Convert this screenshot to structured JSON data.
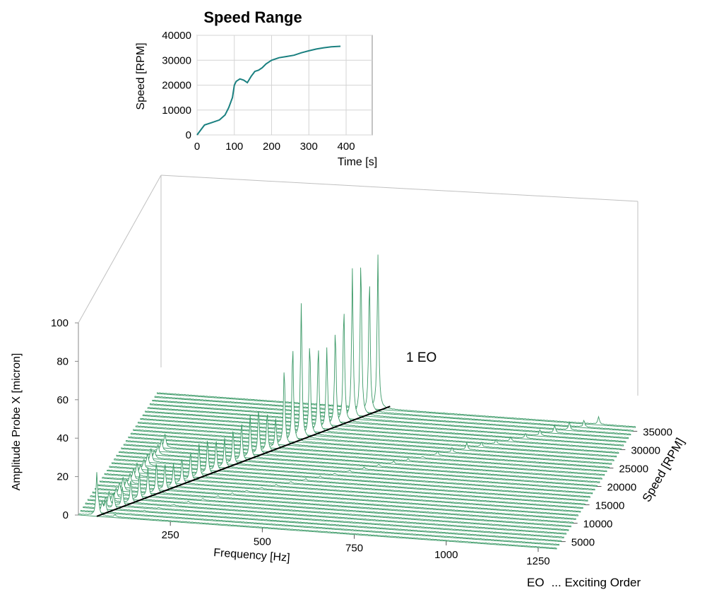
{
  "chart_data": [
    {
      "type": "line",
      "title": "Speed Range",
      "xlabel": "Time [s]",
      "ylabel": "Speed [RPM]",
      "xlim": [
        0,
        470
      ],
      "ylim": [
        0,
        40000
      ],
      "xticks": [
        "0",
        "100",
        "200",
        "300",
        "400"
      ],
      "yticks": [
        "0",
        "10000",
        "20000",
        "30000",
        "40000"
      ],
      "grid": true,
      "color": "#1a8080",
      "x": [
        0,
        10,
        20,
        40,
        60,
        75,
        85,
        95,
        100,
        105,
        115,
        125,
        135,
        145,
        155,
        165,
        175,
        185,
        200,
        220,
        240,
        260,
        280,
        300,
        320,
        340,
        360,
        385
      ],
      "y": [
        0,
        2000,
        4000,
        5000,
        6000,
        8000,
        11000,
        15000,
        20000,
        21500,
        22500,
        22000,
        21000,
        23500,
        25500,
        26000,
        27000,
        28500,
        30000,
        31000,
        31500,
        32000,
        33000,
        33800,
        34500,
        35000,
        35400,
        35600
      ]
    },
    {
      "type": "waterfall",
      "xlabel": "Frequency [Hz]",
      "ylabel": "Amplitude Probe X [micron]",
      "zlabel": "Speed [RPM]",
      "xlim": [
        0,
        1300
      ],
      "ylim": [
        0,
        100
      ],
      "zlim": [
        3000,
        37000
      ],
      "xticks": [
        "250",
        "500",
        "750",
        "1000",
        "1250"
      ],
      "yticks": [
        "0",
        "20",
        "40",
        "60",
        "80",
        "100"
      ],
      "zticks": [
        "5000",
        "10000",
        "15000",
        "20000",
        "25000",
        "30000",
        "35000"
      ],
      "color": "#3d9a68",
      "order_line": {
        "label": "1 EO",
        "order": 1
      },
      "speeds_rpm": [
        3000,
        4000,
        5000,
        6000,
        7000,
        8000,
        9000,
        10000,
        11000,
        12000,
        13000,
        14000,
        15000,
        16000,
        17000,
        18000,
        19000,
        20000,
        21000,
        22000,
        23000,
        24000,
        25000,
        26000,
        27000,
        28000,
        29000,
        30000,
        31000,
        32000,
        33000,
        34000,
        35000,
        36000
      ],
      "peak_amplitudes_1EO": [
        22,
        6,
        9,
        10,
        12,
        14,
        15,
        16,
        14,
        12,
        13,
        15,
        17,
        18,
        16,
        15,
        18,
        20,
        22,
        24,
        20,
        15,
        40,
        50,
        70,
        48,
        45,
        42,
        50,
        60,
        78,
        82,
        70,
        80
      ],
      "note": {
        "abbr": "EO",
        "text": "... Exciting Order"
      }
    }
  ]
}
